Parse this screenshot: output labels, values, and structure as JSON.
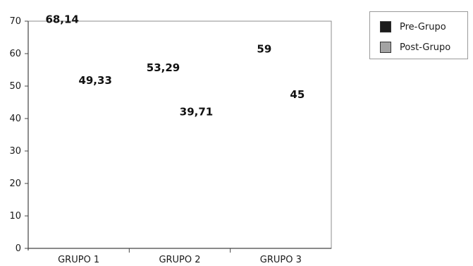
{
  "chart_data": {
    "type": "bar",
    "categories": [
      "GRUPO 1",
      "GRUPO 2",
      "GRUPO 3"
    ],
    "series": [
      {
        "name": "Pre-Grupo",
        "values": [
          68.14,
          53.29,
          59
        ],
        "labels": [
          "68,14",
          "53,29",
          "59"
        ],
        "color": "#1c1c1c"
      },
      {
        "name": "Post-Grupo",
        "values": [
          49.33,
          39.71,
          45
        ],
        "labels": [
          "49,33",
          "39,71",
          "45"
        ],
        "color": "#a3a3a3"
      }
    ],
    "yticks": [
      "0",
      "10",
      "20",
      "30",
      "40",
      "50",
      "60",
      "70"
    ],
    "ylim": [
      0,
      70
    ],
    "grid": true,
    "legend_position": "top-right",
    "title": "",
    "xlabel": "",
    "ylabel": ""
  },
  "legend": {
    "items": [
      {
        "label": "Pre-Grupo",
        "color": "#1c1c1c"
      },
      {
        "label": "Post-Grupo",
        "color": "#a3a3a3"
      }
    ]
  }
}
